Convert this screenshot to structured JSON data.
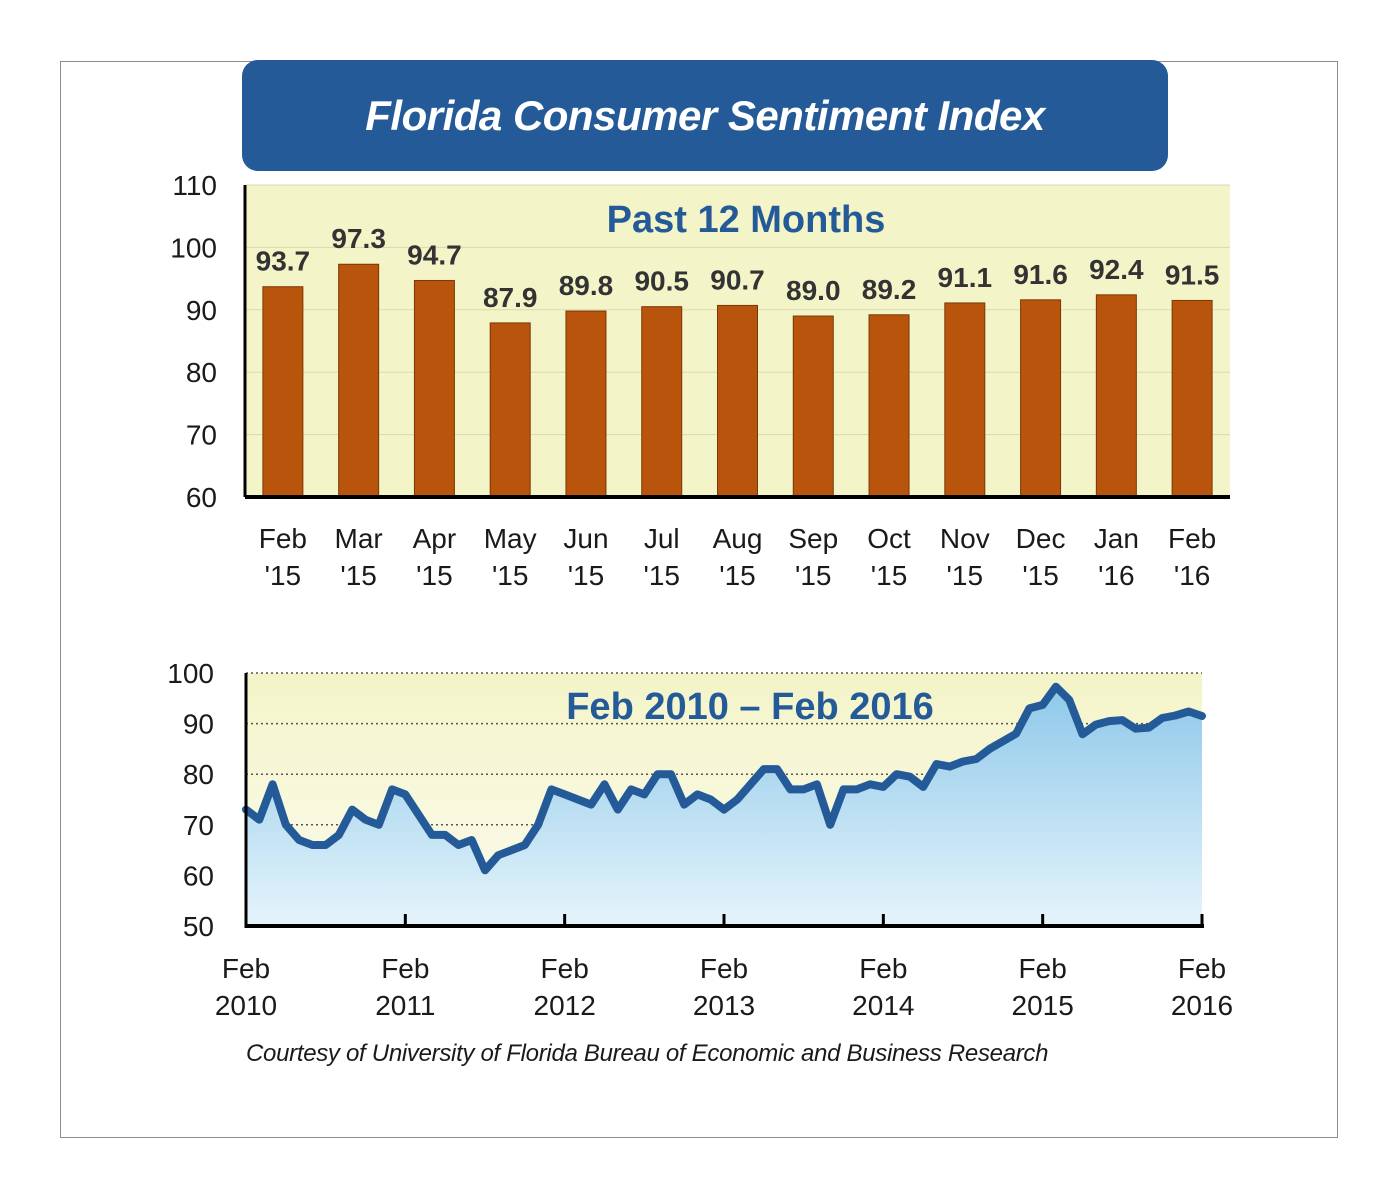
{
  "title": "Florida Consumer Sentiment Index",
  "credit": "Courtesy of University of Florida Bureau of Economic and Business Research",
  "colors": {
    "banner": "#245a97",
    "plot_bg": "#f4f4c9",
    "bar": "#b8540c",
    "line": "#245a97",
    "area_top": "#8ec8ea",
    "area_bottom": "#e6f4fb"
  },
  "chart_data": [
    {
      "type": "bar",
      "title": "Past 12 Months",
      "categories": [
        [
          "Feb",
          "'15"
        ],
        [
          "Mar",
          "'15"
        ],
        [
          "Apr",
          "'15"
        ],
        [
          "May",
          "'15"
        ],
        [
          "Jun",
          "'15"
        ],
        [
          "Jul",
          "'15"
        ],
        [
          "Aug",
          "'15"
        ],
        [
          "Sep",
          "'15"
        ],
        [
          "Oct",
          "'15"
        ],
        [
          "Nov",
          "'15"
        ],
        [
          "Dec",
          "'15"
        ],
        [
          "Jan",
          "'16"
        ],
        [
          "Feb",
          "'16"
        ]
      ],
      "values": [
        93.7,
        97.3,
        94.7,
        87.9,
        89.8,
        90.5,
        90.7,
        89.0,
        89.2,
        91.1,
        91.6,
        92.4,
        91.5
      ],
      "data_labels": [
        "93.7",
        "97.3",
        "94.7",
        "87.9",
        "89.8",
        "90.5",
        "90.7",
        "89.0",
        "89.2",
        "91.1",
        "91.6",
        "92.4",
        "91.5"
      ],
      "ylim": [
        60,
        110
      ],
      "yticks": [
        60,
        70,
        80,
        90,
        100,
        110
      ],
      "grid": true
    },
    {
      "type": "area",
      "title": "Feb 2010 – Feb 2016",
      "x_start": "2010-02",
      "x_end": "2016-02",
      "xticks": [
        [
          "Feb",
          "2010"
        ],
        [
          "Feb",
          "2011"
        ],
        [
          "Feb",
          "2012"
        ],
        [
          "Feb",
          "2013"
        ],
        [
          "Feb",
          "2014"
        ],
        [
          "Feb",
          "2015"
        ],
        [
          "Feb",
          "2016"
        ]
      ],
      "values": [
        73,
        71,
        78,
        70,
        67,
        66,
        66,
        68,
        73,
        71,
        70,
        77,
        76,
        72,
        68,
        68,
        66,
        67,
        61,
        64,
        65,
        66,
        70,
        77,
        76,
        75,
        74,
        78,
        73,
        77,
        76,
        80,
        80,
        74,
        76,
        75,
        73,
        75,
        78,
        81,
        81,
        77,
        77,
        78,
        70,
        77,
        77,
        78,
        77.5,
        80,
        79.5,
        77.5,
        82,
        81.5,
        82.5,
        83,
        85,
        86.5,
        88,
        93,
        93.7,
        97.3,
        94.7,
        87.9,
        89.8,
        90.5,
        90.7,
        89.0,
        89.2,
        91.1,
        91.6,
        92.4,
        91.5
      ],
      "ylim": [
        50,
        100
      ],
      "yticks": [
        50,
        60,
        70,
        80,
        90,
        100
      ],
      "grid": true
    }
  ]
}
